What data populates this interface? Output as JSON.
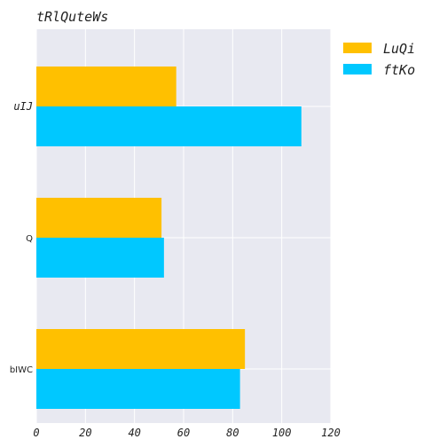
{
  "chart_data": {
    "type": "bar",
    "orientation": "horizontal",
    "title": "tRlQuteWs",
    "categories": [
      "uIJ",
      "Q",
      "bIWC"
    ],
    "series": [
      {
        "name": "LuQi",
        "values": [
          57,
          51,
          85
        ],
        "color": "#FFC000"
      },
      {
        "name": "ftKo",
        "values": [
          108,
          52,
          83
        ],
        "color": "#00C8FF"
      }
    ],
    "xlim": [
      0,
      120
    ],
    "xticks": [
      "0",
      "20",
      "40",
      "60",
      "80",
      "100",
      "120"
    ],
    "grid": true,
    "legend_position": "top-right-outside",
    "background": "#E8E9F1"
  }
}
